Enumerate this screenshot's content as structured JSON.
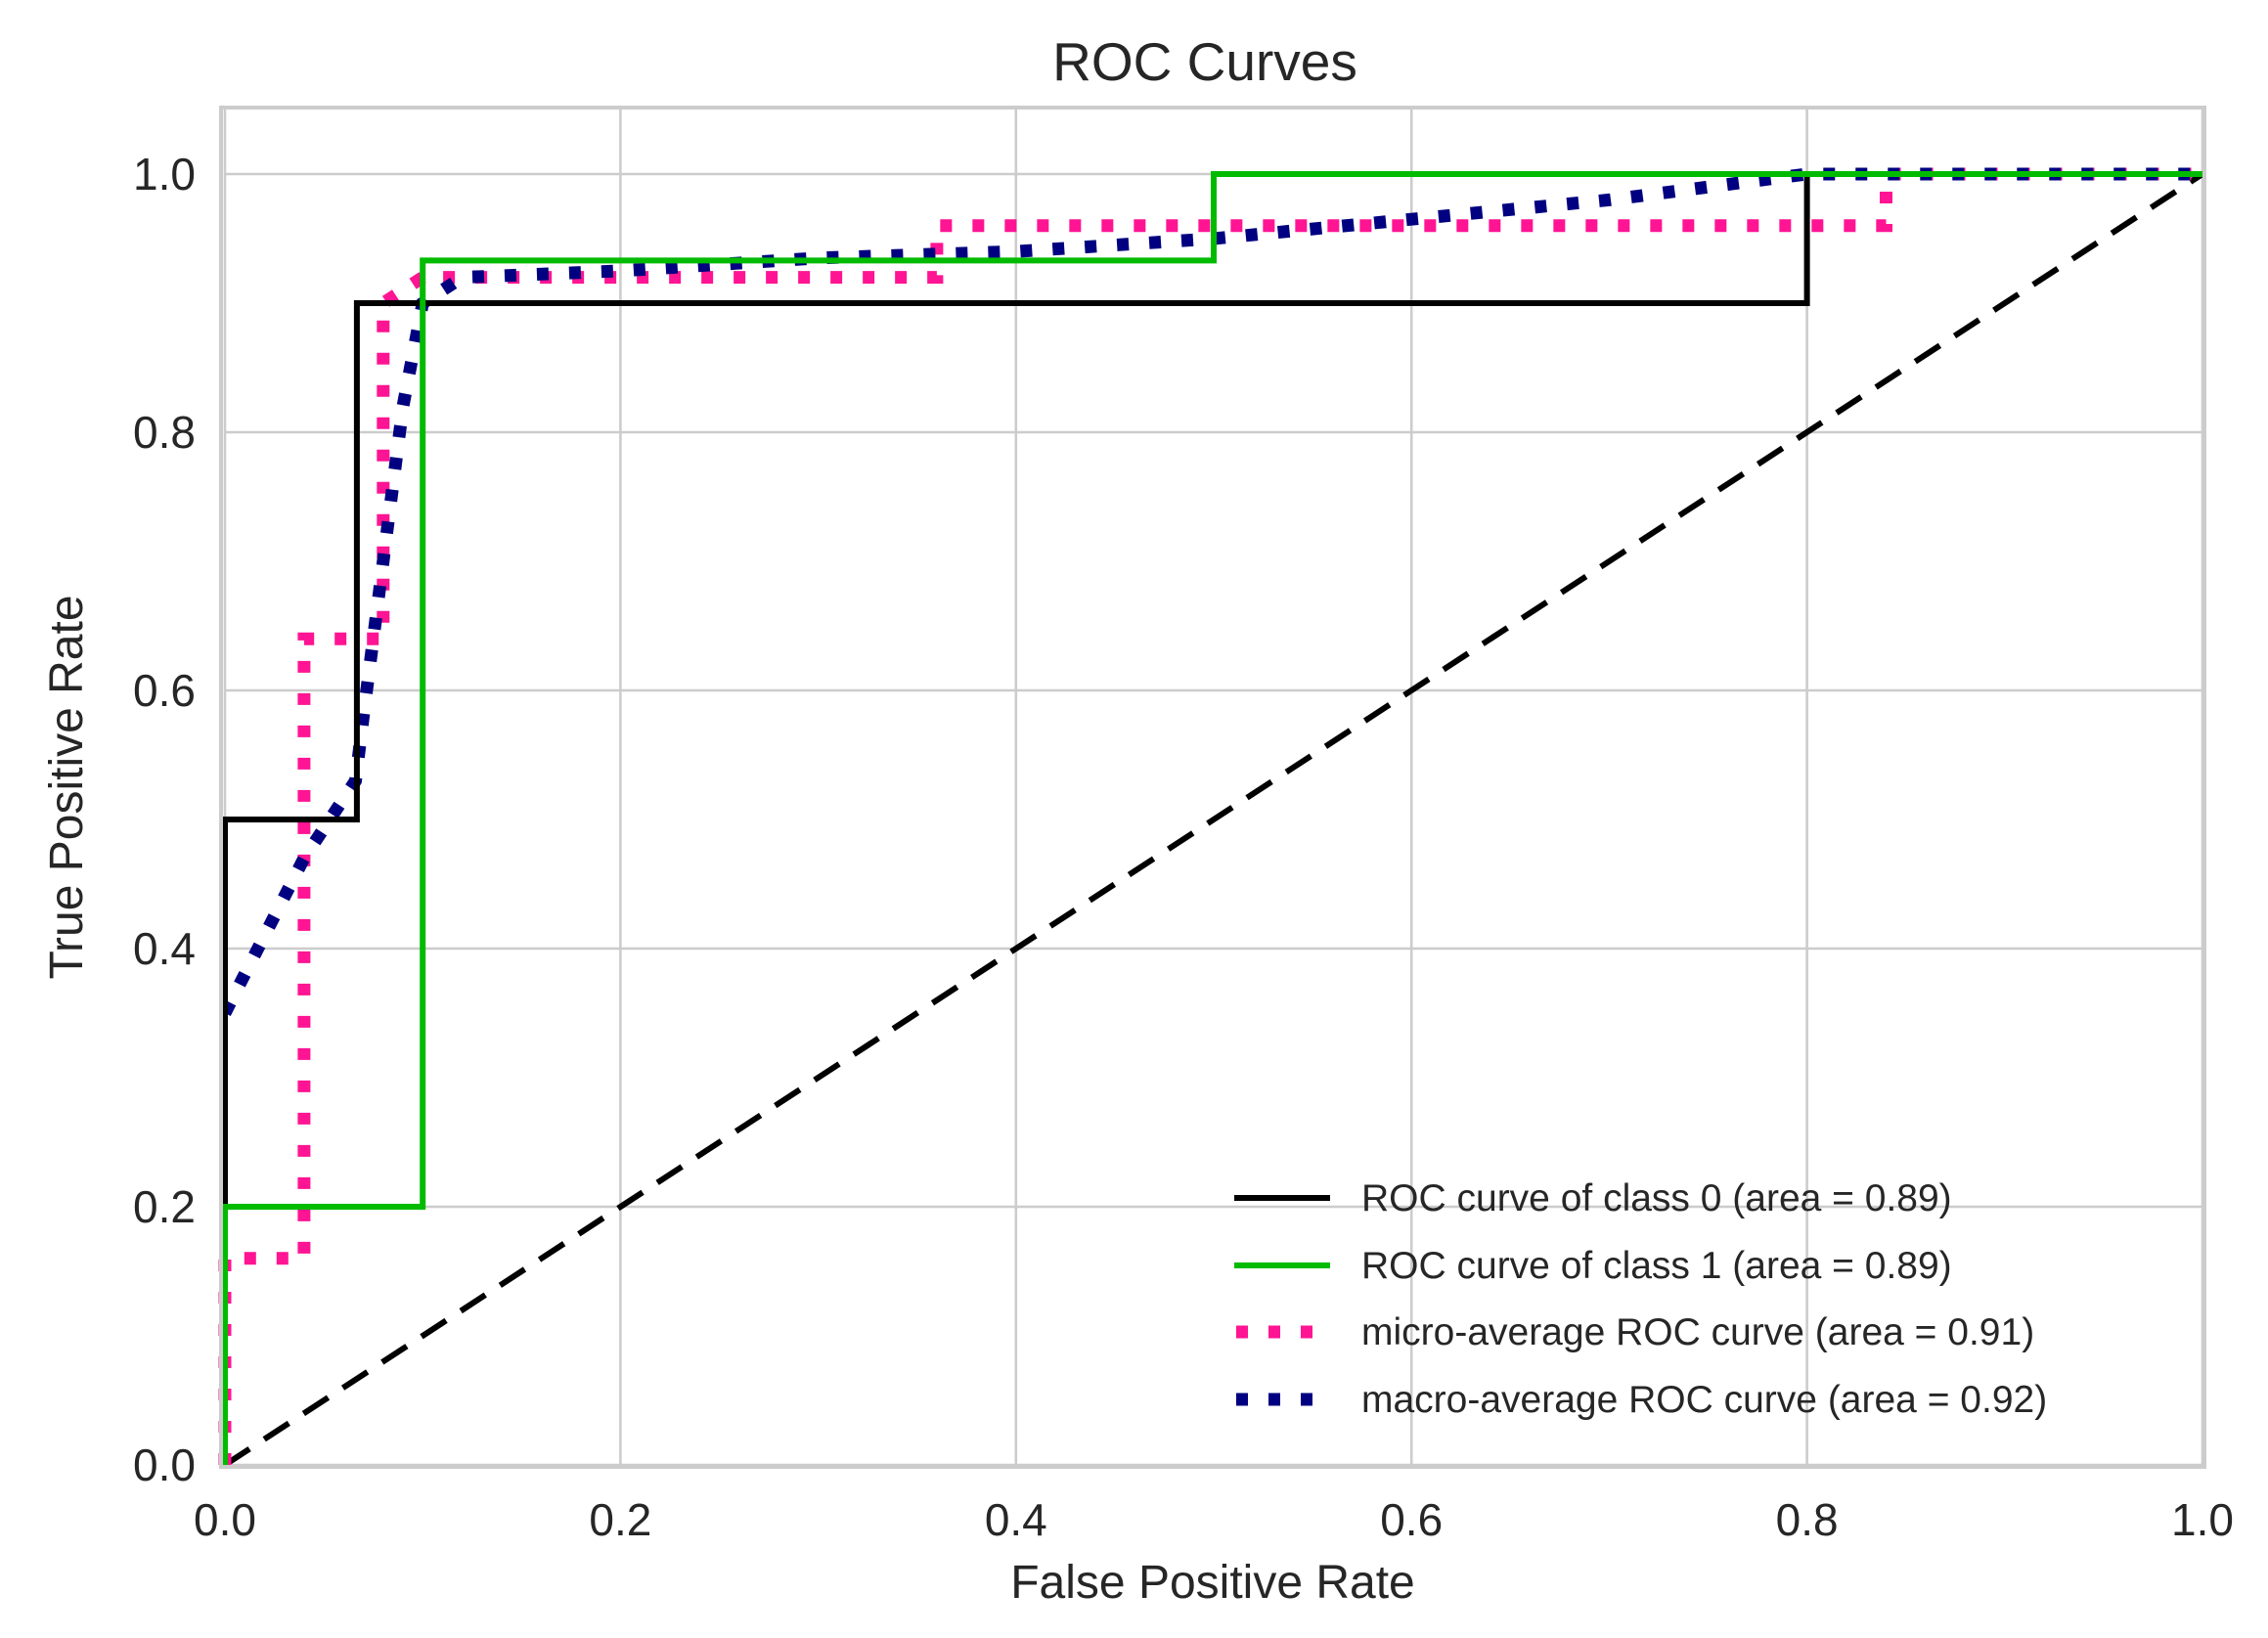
{
  "chart_data": {
    "type": "line",
    "title": "ROC Curves",
    "xlabel": "False Positive Rate",
    "ylabel": "True Positive Rate",
    "xlim": [
      0.0,
      1.0
    ],
    "ylim": [
      0.0,
      1.05
    ],
    "xticks": [
      "0.0",
      "0.2",
      "0.4",
      "0.6",
      "0.8",
      "1.0"
    ],
    "yticks": [
      "0.0",
      "0.2",
      "0.4",
      "0.6",
      "0.8",
      "1.0"
    ],
    "grid": true,
    "legend_position": "lower-right",
    "colors": {
      "class0": "#000000",
      "class1": "#00bb00",
      "micro": "#ff1493",
      "macro": "#000080",
      "diagonal": "#000000"
    },
    "series": [
      {
        "name": "ROC curve of class 0 (area = 0.89)",
        "key": "class0",
        "style": "solid",
        "x": [
          0.0,
          0.0,
          0.0667,
          0.0667,
          0.8,
          0.8,
          1.0
        ],
        "y": [
          0.0,
          0.5,
          0.5,
          0.9,
          0.9,
          1.0,
          1.0
        ]
      },
      {
        "name": "ROC curve of class 1 (area = 0.89)",
        "key": "class1",
        "style": "solid",
        "x": [
          0.0,
          0.0,
          0.1,
          0.1,
          0.5,
          0.5,
          1.0
        ],
        "y": [
          0.0,
          0.2,
          0.2,
          0.933,
          0.933,
          1.0,
          1.0
        ]
      },
      {
        "name": "micro-average ROC curve (area = 0.91)",
        "key": "micro",
        "style": "dotted",
        "x": [
          0.0,
          0.0,
          0.04,
          0.04,
          0.08,
          0.08,
          0.1,
          0.1,
          0.36,
          0.36,
          0.84,
          0.84,
          1.0
        ],
        "y": [
          0.0,
          0.16,
          0.16,
          0.64,
          0.64,
          0.9,
          0.92,
          0.92,
          0.92,
          0.96,
          0.96,
          1.0,
          1.0
        ]
      },
      {
        "name": "macro-average ROC curve (area = 0.92)",
        "key": "macro",
        "style": "dotted",
        "x": [
          0.0,
          0.02,
          0.04,
          0.066,
          0.07,
          0.08,
          0.09,
          0.1,
          0.12,
          0.2,
          0.3,
          0.4,
          0.5,
          0.6,
          0.7,
          0.8,
          0.9,
          1.0
        ],
        "y": [
          0.35,
          0.41,
          0.47,
          0.53,
          0.58,
          0.7,
          0.82,
          0.9,
          0.92,
          0.925,
          0.935,
          0.94,
          0.95,
          0.965,
          0.98,
          1.0,
          1.0,
          1.0
        ]
      },
      {
        "name": "chance diagonal",
        "key": "diagonal",
        "style": "dashed",
        "x": [
          0.0,
          1.0
        ],
        "y": [
          0.0,
          1.0
        ]
      }
    ],
    "legend": [
      "ROC curve of class 0 (area = 0.89)",
      "ROC curve of class 1 (area = 0.89)",
      "micro-average ROC curve (area = 0.91)",
      "macro-average ROC curve (area = 0.92)"
    ]
  }
}
